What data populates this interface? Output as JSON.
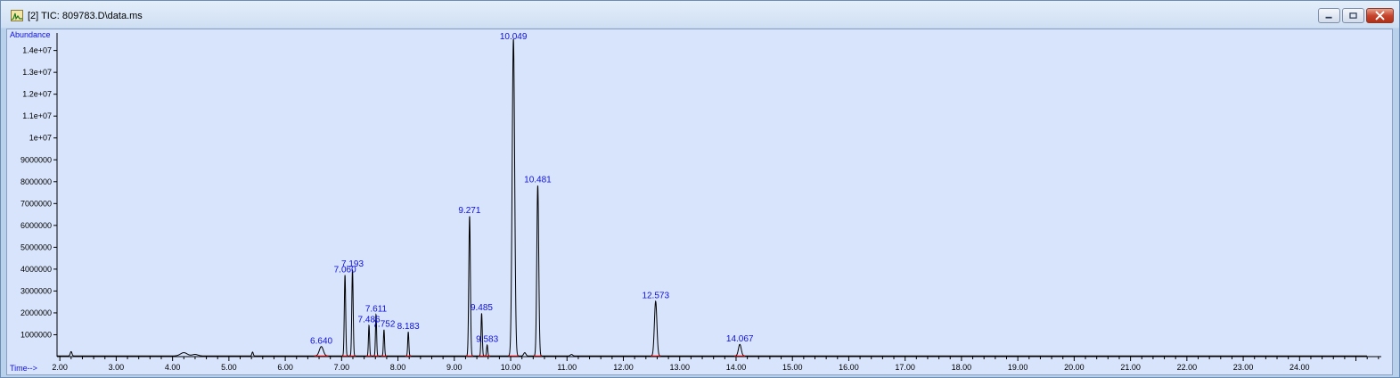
{
  "window": {
    "title": "[2] TIC: 809783.D\\data.ms",
    "icon": "chromatogram-app-icon",
    "controls": [
      "minimize-icon",
      "restore-icon",
      "close-icon"
    ]
  },
  "colors": {
    "plot_background": "#d7e4fb",
    "trace": "#000000",
    "peak_label": "#1010e0",
    "axis_label": "#1010e0",
    "baseline_marker": "#e00000"
  },
  "chart_data": {
    "type": "line",
    "title": "",
    "xlabel": "Time-->",
    "ylabel": "Abundance",
    "xlim": [
      1.95,
      25.45
    ],
    "ylim": [
      0,
      14800000
    ],
    "x_ticks": [
      "2.00",
      "3.00",
      "4.00",
      "5.00",
      "6.00",
      "7.00",
      "8.00",
      "9.00",
      "10.00",
      "11.00",
      "12.00",
      "13.00",
      "14.00",
      "15.00",
      "16.00",
      "17.00",
      "18.00",
      "19.00",
      "20.00",
      "21.00",
      "22.00",
      "23.00",
      "24.00"
    ],
    "y_ticks": [
      {
        "value": 1000000,
        "label": "1000000"
      },
      {
        "value": 2000000,
        "label": "2000000"
      },
      {
        "value": 3000000,
        "label": "3000000"
      },
      {
        "value": 4000000,
        "label": "4000000"
      },
      {
        "value": 5000000,
        "label": "5000000"
      },
      {
        "value": 6000000,
        "label": "6000000"
      },
      {
        "value": 7000000,
        "label": "7000000"
      },
      {
        "value": 8000000,
        "label": "8000000"
      },
      {
        "value": 9000000,
        "label": "9000000"
      },
      {
        "value": 10000000,
        "label": "1e+07"
      },
      {
        "value": 11000000,
        "label": "1.1e+07"
      },
      {
        "value": 12000000,
        "label": "1.2e+07"
      },
      {
        "value": 13000000,
        "label": "1.3e+07"
      },
      {
        "value": 14000000,
        "label": "1.4e+07"
      }
    ],
    "baseline": 30000,
    "minor_bumps": [
      {
        "x": 2.2,
        "y": 200000,
        "w": 0.015
      },
      {
        "x": 4.2,
        "y": 150000,
        "w": 0.06
      },
      {
        "x": 4.4,
        "y": 70000,
        "w": 0.05
      },
      {
        "x": 5.42,
        "y": 180000,
        "w": 0.012
      },
      {
        "x": 10.25,
        "y": 150000,
        "w": 0.02
      },
      {
        "x": 11.08,
        "y": 70000,
        "w": 0.02
      }
    ],
    "peaks": [
      {
        "label": "6.640",
        "x": 6.64,
        "y": 430000,
        "w": 0.035
      },
      {
        "label": "7.060",
        "x": 7.06,
        "y": 3700000,
        "w": 0.012
      },
      {
        "label": "7.193",
        "x": 7.193,
        "y": 3950000,
        "w": 0.012
      },
      {
        "label": "7.486",
        "x": 7.486,
        "y": 1400000,
        "w": 0.01
      },
      {
        "label": "7.611",
        "x": 7.611,
        "y": 1900000,
        "w": 0.01
      },
      {
        "label": "7.752",
        "x": 7.752,
        "y": 1200000,
        "w": 0.01
      },
      {
        "label": "8.183",
        "x": 8.183,
        "y": 1100000,
        "w": 0.01
      },
      {
        "label": "9.271",
        "x": 9.271,
        "y": 6400000,
        "w": 0.014
      },
      {
        "label": "9.485",
        "x": 9.485,
        "y": 1950000,
        "w": 0.011
      },
      {
        "label": "9.583",
        "x": 9.583,
        "y": 500000,
        "w": 0.01
      },
      {
        "label": "10.049",
        "x": 10.049,
        "y": 14500000,
        "w": 0.022
      },
      {
        "label": "10.481",
        "x": 10.481,
        "y": 7800000,
        "w": 0.017
      },
      {
        "label": "12.573",
        "x": 12.573,
        "y": 2500000,
        "w": 0.022
      },
      {
        "label": "14.067",
        "x": 14.067,
        "y": 530000,
        "w": 0.025
      }
    ]
  }
}
